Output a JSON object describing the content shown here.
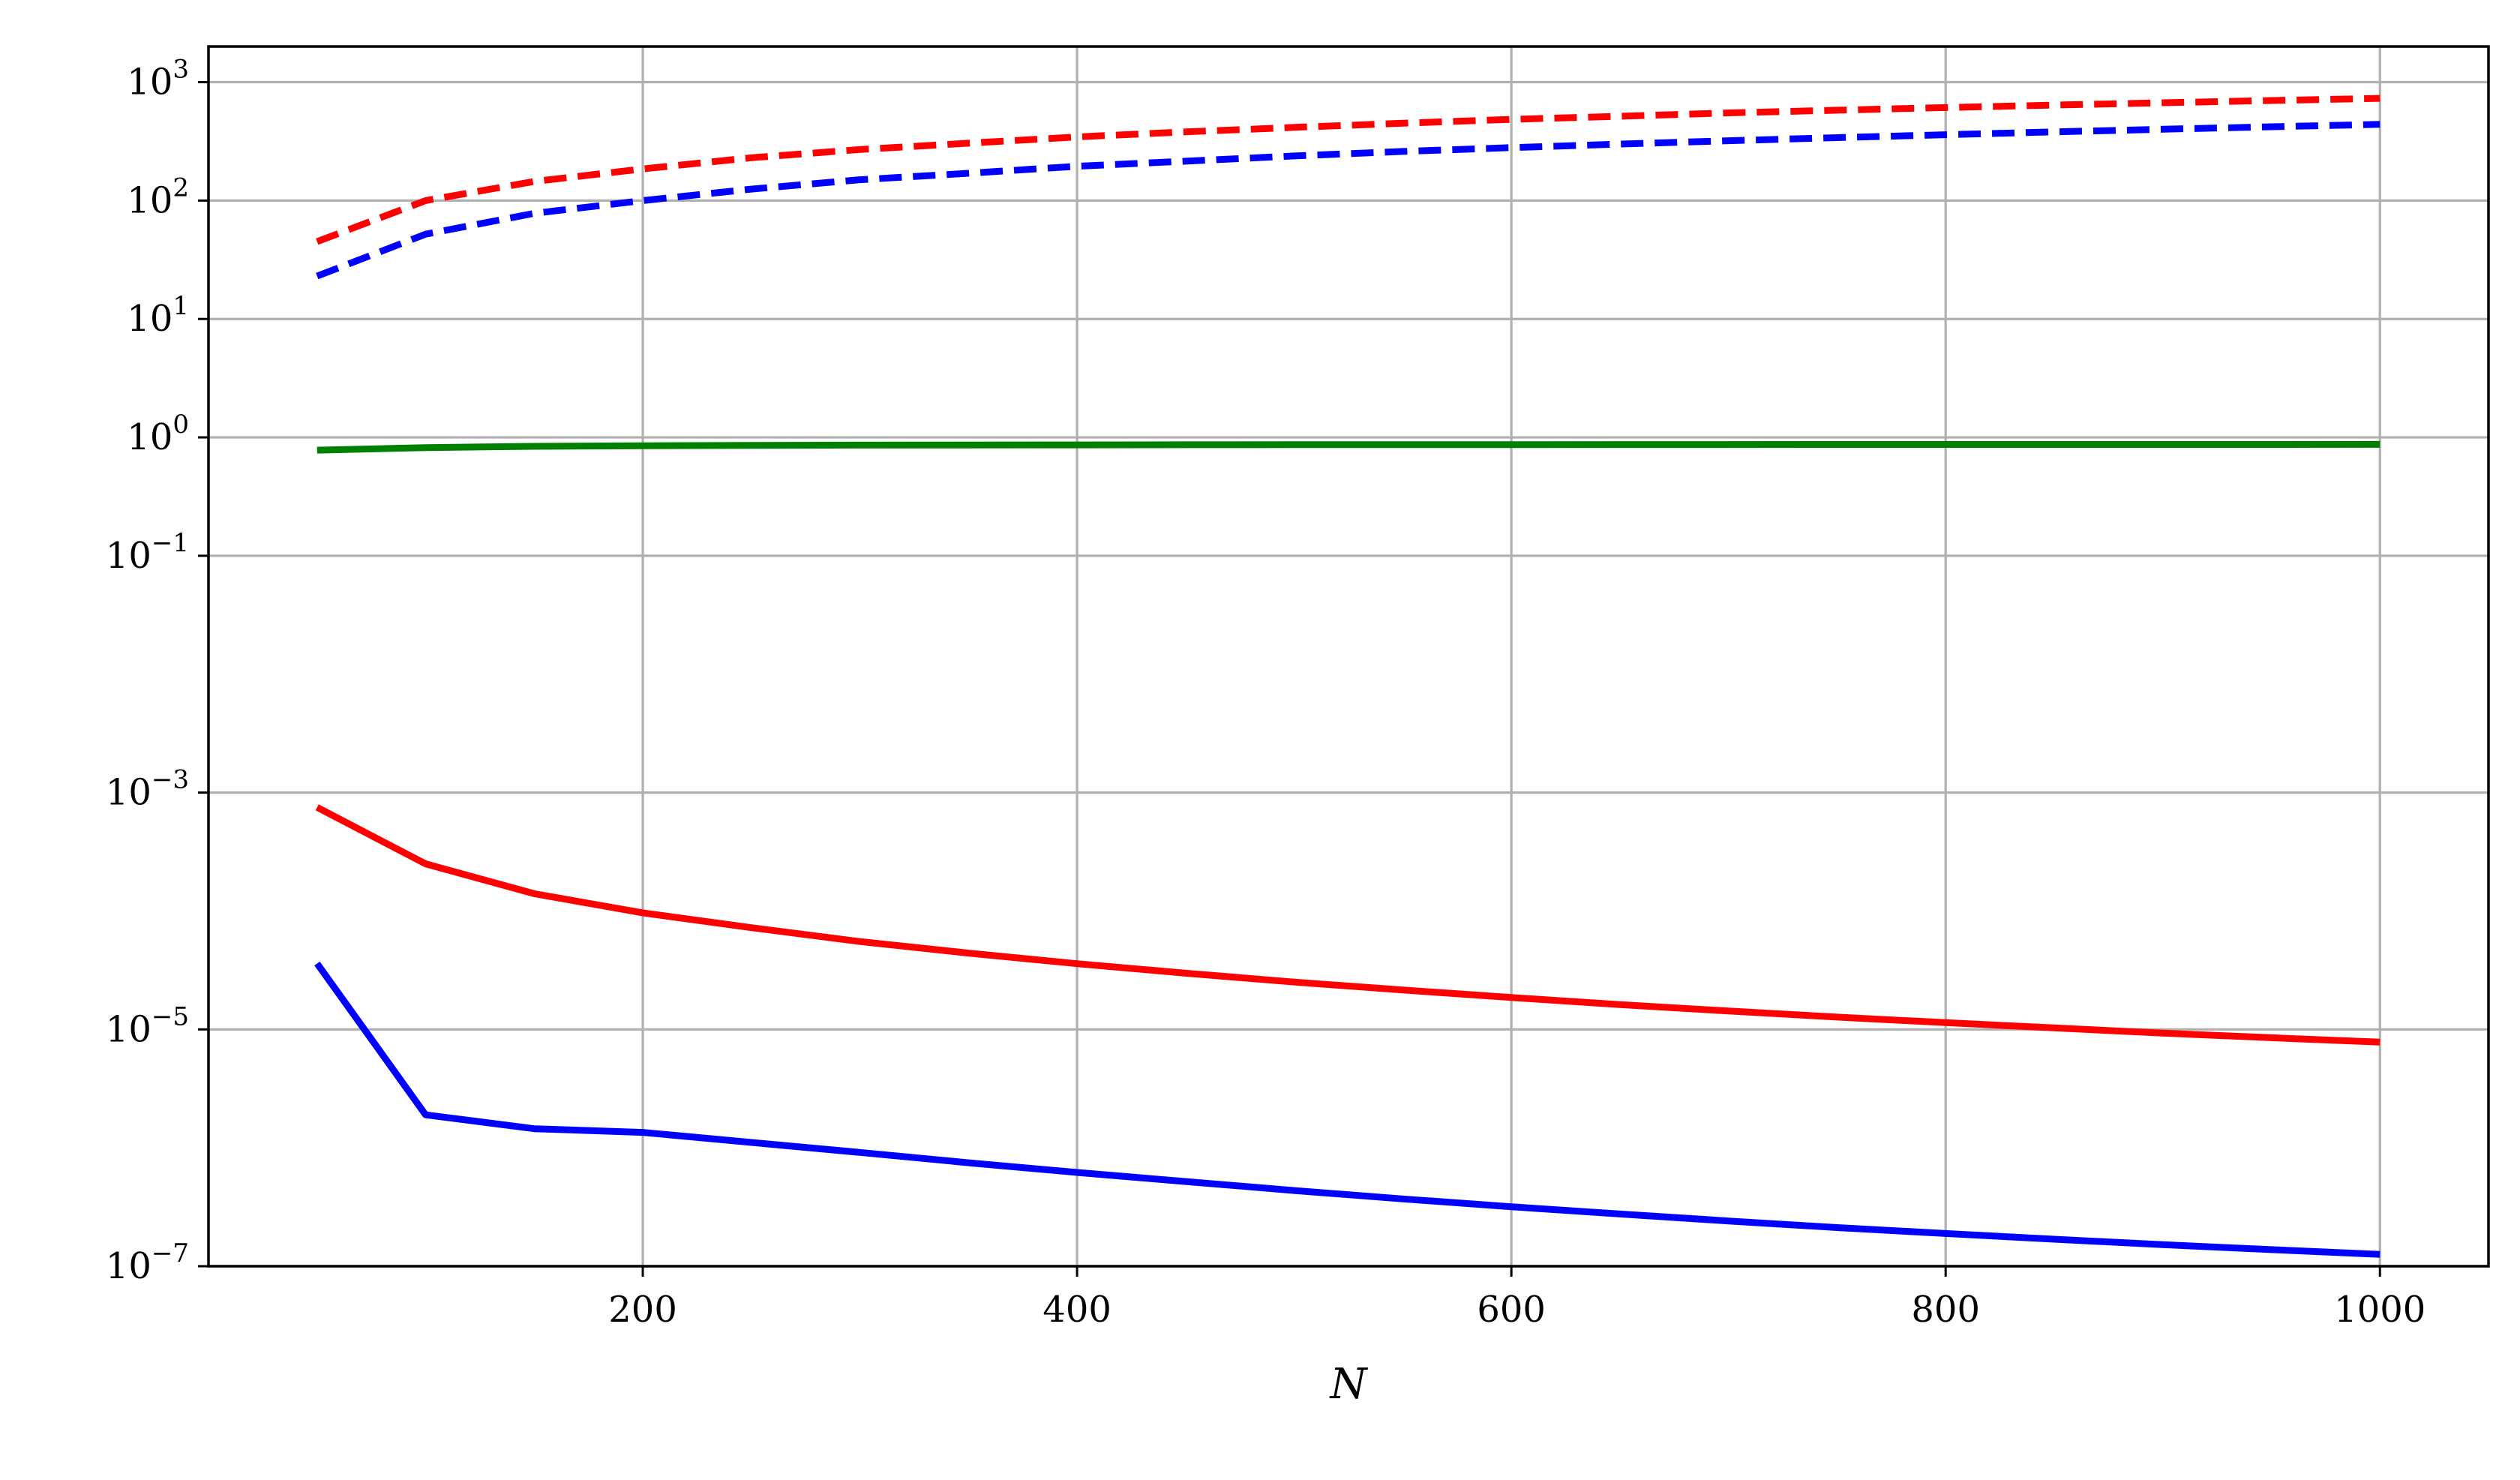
{
  "chart_data": {
    "type": "line",
    "title": "",
    "xlabel": "N",
    "ylabel": "",
    "yscale": "log",
    "grid": true,
    "legend": "none",
    "xlim": [
      0,
      1050
    ],
    "ylim": [
      1e-07,
      2000
    ],
    "xticks": [
      200,
      400,
      600,
      800,
      1000
    ],
    "xtick_labels": [
      "200",
      "400",
      "600",
      "800",
      "1000"
    ],
    "yticks": [
      {
        "value": 1000,
        "base": "10",
        "exp": "3"
      },
      {
        "value": 100,
        "base": "10",
        "exp": "2"
      },
      {
        "value": 10,
        "base": "10",
        "exp": "1"
      },
      {
        "value": 1,
        "base": "10",
        "exp": "0"
      },
      {
        "value": 0.1,
        "base": "10",
        "exp": "−1"
      },
      {
        "value": 0.001,
        "base": "10",
        "exp": "−3"
      },
      {
        "value": 1e-05,
        "base": "10",
        "exp": "−5"
      },
      {
        "value": 1e-07,
        "base": "10",
        "exp": "−7"
      }
    ],
    "x": [
      50,
      100,
      150,
      200,
      250,
      300,
      350,
      400,
      450,
      500,
      550,
      600,
      650,
      700,
      750,
      800,
      850,
      900,
      950,
      1000
    ],
    "series": [
      {
        "color": "#ff0000",
        "style": "dashed",
        "values": [
          45,
          100,
          145,
          185,
          230,
          270,
          305,
          345,
          380,
          415,
          450,
          485,
          515,
          550,
          580,
          610,
          640,
          670,
          700,
          730
        ]
      },
      {
        "color": "#0000ff",
        "style": "dashed",
        "values": [
          23,
          52,
          78,
          100,
          125,
          150,
          170,
          195,
          215,
          238,
          260,
          280,
          300,
          320,
          340,
          360,
          380,
          400,
          420,
          440
        ]
      },
      {
        "color": "#008000",
        "style": "solid",
        "values": [
          0.78,
          0.82,
          0.84,
          0.85,
          0.855,
          0.86,
          0.862,
          0.864,
          0.866,
          0.867,
          0.868,
          0.869,
          0.87,
          0.87,
          0.871,
          0.871,
          0.872,
          0.872,
          0.872,
          0.873
        ]
      },
      {
        "color": "#ff0000",
        "style": "solid",
        "values": [
          0.00075,
          0.00025,
          0.00014,
          9.65e-05,
          7.23e-05,
          5.52e-05,
          4.41e-05,
          3.59e-05,
          2.98e-05,
          2.51e-05,
          2.15e-05,
          1.86e-05,
          1.62e-05,
          1.43e-05,
          1.27e-05,
          1.14e-05,
          1.03e-05,
          9.3e-06,
          8.5e-06,
          7.8e-06
        ]
      },
      {
        "color": "#0000ff",
        "style": "solid",
        "values": [
          3.6e-05,
          1.9e-06,
          1.45e-06,
          1.35e-06,
          1.11e-06,
          9.14e-07,
          7.47e-07,
          6.19e-07,
          5.19e-07,
          4.36e-07,
          3.7e-07,
          3.18e-07,
          2.76e-07,
          2.41e-07,
          2.12e-07,
          1.89e-07,
          1.69e-07,
          1.52e-07,
          1.38e-07,
          1.26e-07
        ]
      }
    ]
  }
}
